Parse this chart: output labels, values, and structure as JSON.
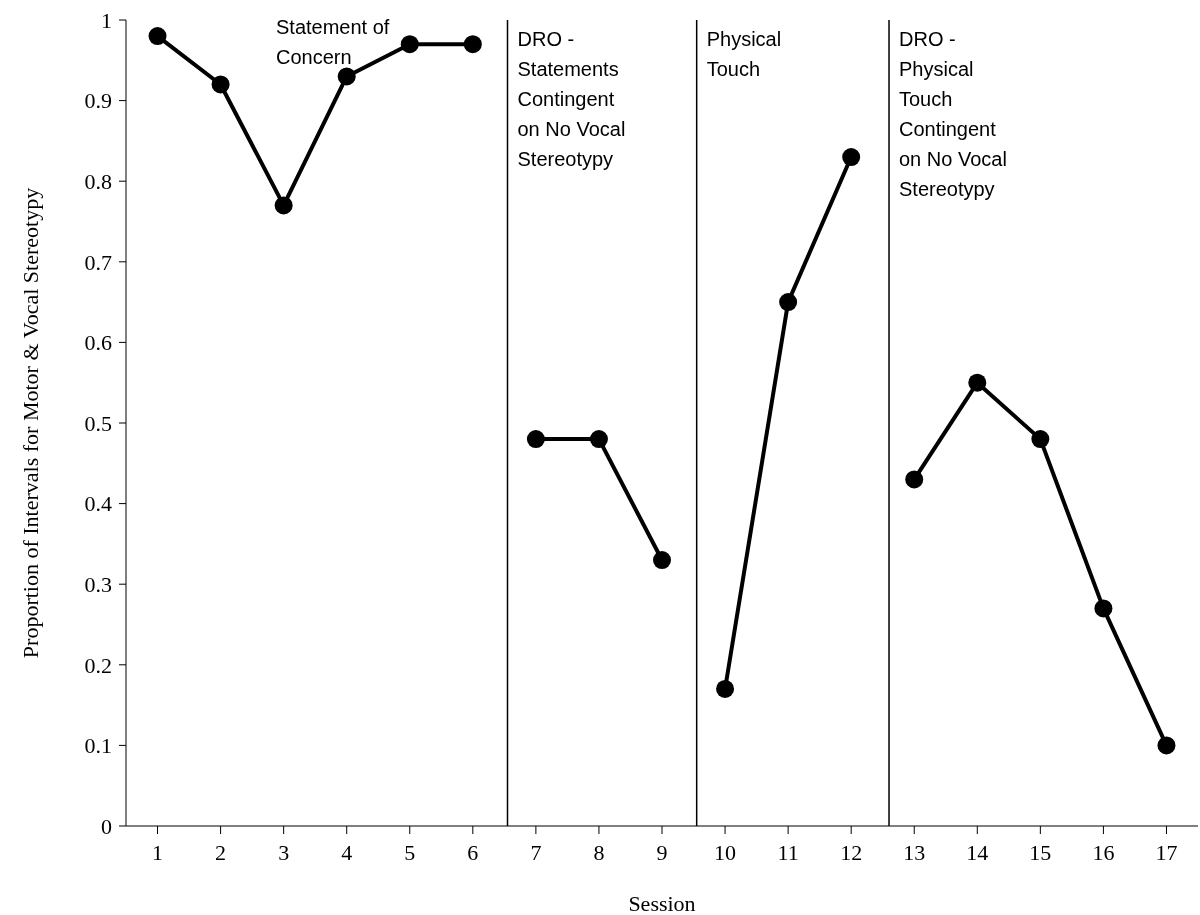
{
  "chart_data": {
    "type": "line",
    "xlabel": "Session",
    "ylabel": "Proportion of Intervals for Motor & Vocal Stereotypy",
    "x": [
      1,
      2,
      3,
      4,
      5,
      6,
      7,
      8,
      9,
      10,
      11,
      12,
      13,
      14,
      15,
      16,
      17
    ],
    "xlim": [
      0.5,
      17.5
    ],
    "xticks": [
      1,
      2,
      3,
      4,
      5,
      6,
      7,
      8,
      9,
      10,
      11,
      12,
      13,
      14,
      15,
      16,
      17
    ],
    "ylim": [
      0,
      1
    ],
    "yticks": [
      0,
      0.1,
      0.2,
      0.3,
      0.4,
      0.5,
      0.6,
      0.7,
      0.8,
      0.9,
      1
    ],
    "series": [
      {
        "color": "#000000",
        "values": [
          0.98,
          0.92,
          0.77,
          0.93,
          0.97,
          0.97,
          null,
          null,
          null,
          null,
          null,
          null,
          null,
          null,
          null,
          null,
          null
        ]
      },
      {
        "color": "#000000",
        "values": [
          null,
          null,
          null,
          null,
          null,
          null,
          0.48,
          0.48,
          0.33,
          null,
          null,
          null,
          null,
          null,
          null,
          null,
          null
        ]
      },
      {
        "color": "#000000",
        "values": [
          null,
          null,
          null,
          null,
          null,
          null,
          null,
          null,
          null,
          0.17,
          0.65,
          0.83,
          null,
          null,
          null,
          null,
          null
        ]
      },
      {
        "color": "#000000",
        "values": [
          null,
          null,
          null,
          null,
          null,
          null,
          null,
          null,
          null,
          null,
          null,
          null,
          0.43,
          0.55,
          0.48,
          0.27,
          0.1
        ]
      }
    ],
    "marker": "circle",
    "line_style": "solid",
    "grid": false,
    "ref_lines": [
      {
        "axis": "x",
        "value": 6.55,
        "label": "DRO - Statements Contingent on No Vocal Stereotypy",
        "color": "#000000"
      },
      {
        "axis": "x",
        "value": 9.55,
        "label": "Physical Touch",
        "color": "#000000"
      },
      {
        "axis": "x",
        "value": 12.6,
        "label": "DRO - Physical Touch Contingent on No Vocal Stereotypy",
        "color": "#000000"
      }
    ],
    "annotations": [
      "Statement of Concern"
    ]
  }
}
